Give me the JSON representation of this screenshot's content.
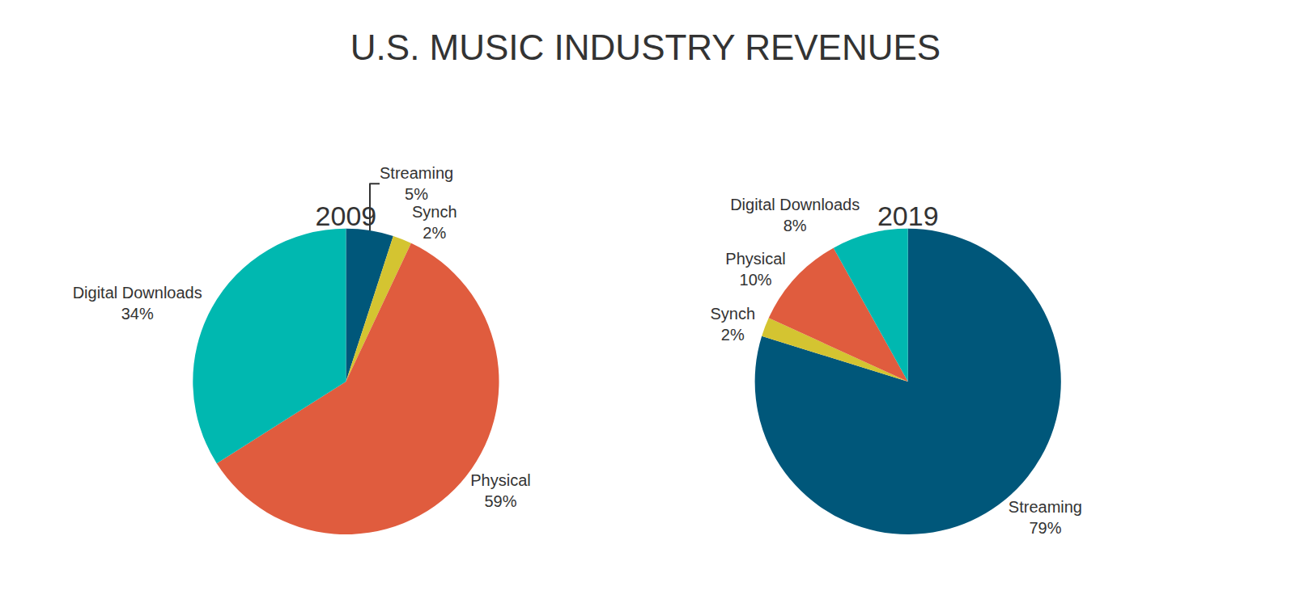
{
  "title": "U.S. MUSIC INDUSTRY REVENUES",
  "chart_data": [
    {
      "type": "pie",
      "title": "2009",
      "categories": [
        "Streaming",
        "Synch",
        "Physical",
        "Digital Downloads"
      ],
      "values": [
        5,
        2,
        59,
        34
      ],
      "value_labels": [
        "5%",
        "2%",
        "59%",
        "34%"
      ],
      "colors": [
        "#00577a",
        "#d4c431",
        "#e05c3e",
        "#00b8b0"
      ],
      "data_labels": true
    },
    {
      "type": "pie",
      "title": "2019",
      "categories": [
        "Streaming",
        "Synch",
        "Physical",
        "Digital Downloads"
      ],
      "values": [
        79,
        2,
        10,
        8
      ],
      "value_labels": [
        "79%",
        "2%",
        "10%",
        "8%"
      ],
      "colors": [
        "#00577a",
        "#d4c431",
        "#e05c3e",
        "#00b8b0"
      ],
      "data_labels": true
    }
  ]
}
